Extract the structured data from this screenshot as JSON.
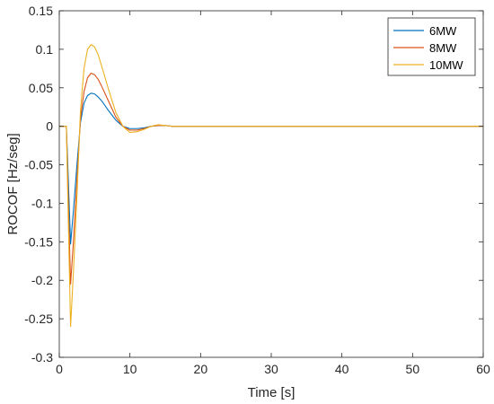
{
  "chart_data": {
    "type": "line",
    "title": "",
    "xlabel": "Time [s]",
    "ylabel": "ROCOF [Hz/seg]",
    "xlim": [
      0,
      60
    ],
    "ylim": [
      -0.3,
      0.15
    ],
    "xticks": [
      0,
      10,
      20,
      30,
      40,
      50,
      60
    ],
    "yticks": [
      -0.3,
      -0.25,
      -0.2,
      -0.15,
      -0.1,
      -0.05,
      0,
      0.05,
      0.1,
      0.15
    ],
    "xtick_labels": [
      "0",
      "10",
      "20",
      "30",
      "40",
      "50",
      "60"
    ],
    "ytick_labels": [
      "-0.3",
      "-0.25",
      "-0.2",
      "-0.15",
      "-0.1",
      "-0.05",
      "0",
      "0.05",
      "0.1",
      "0.15"
    ],
    "grid": false,
    "legend_position": "top-right",
    "series": [
      {
        "name": "6MW",
        "color": "#0072BD",
        "x": [
          0,
          1,
          1.2,
          1.6,
          2,
          2.5,
          3,
          3.5,
          4,
          4.5,
          5,
          5.5,
          6,
          7,
          8,
          9,
          10,
          11,
          12,
          13,
          14,
          15,
          16,
          17,
          18,
          20,
          60
        ],
        "y": [
          0,
          0,
          -0.05,
          -0.153,
          -0.11,
          -0.05,
          0.005,
          0.03,
          0.04,
          0.043,
          0.042,
          0.038,
          0.033,
          0.02,
          0.008,
          0.0,
          -0.003,
          -0.003,
          -0.002,
          0.0,
          0.001,
          0.001,
          0.0,
          0.0,
          0.0,
          0.0,
          0.0
        ]
      },
      {
        "name": "8MW",
        "color": "#D95319",
        "x": [
          0,
          1,
          1.2,
          1.6,
          2,
          2.5,
          3,
          3.5,
          4,
          4.5,
          5,
          5.5,
          6,
          7,
          8,
          9,
          10,
          11,
          12,
          13,
          14,
          15,
          16,
          17,
          18,
          20,
          60
        ],
        "y": [
          0,
          0,
          -0.07,
          -0.205,
          -0.15,
          -0.07,
          0.01,
          0.045,
          0.063,
          0.069,
          0.067,
          0.061,
          0.052,
          0.032,
          0.012,
          0.0,
          -0.005,
          -0.005,
          -0.003,
          0.0,
          0.001,
          0.001,
          0.0,
          0.0,
          0.0,
          0.0,
          0.0
        ]
      },
      {
        "name": "10MW",
        "color": "#EDB120",
        "x": [
          0,
          1,
          1.2,
          1.6,
          2,
          2.5,
          3,
          3.5,
          4,
          4.5,
          5,
          5.5,
          6,
          7,
          8,
          9,
          10,
          11,
          12,
          13,
          14,
          15,
          16,
          17,
          18,
          20,
          60
        ],
        "y": [
          0,
          0,
          -0.09,
          -0.26,
          -0.19,
          -0.09,
          0.02,
          0.075,
          0.1,
          0.106,
          0.103,
          0.093,
          0.078,
          0.047,
          0.018,
          0.0,
          -0.008,
          -0.007,
          -0.004,
          0.0,
          0.002,
          0.001,
          0.0,
          0.0,
          0.0,
          0.0,
          0.0
        ]
      }
    ]
  }
}
